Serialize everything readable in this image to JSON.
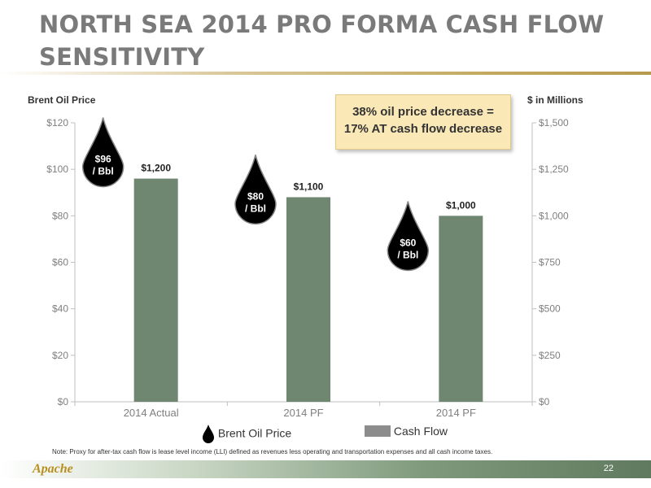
{
  "slide": {
    "title": "NORTH SEA 2014 PRO FORMA CASH FLOW SENSITIVITY",
    "page_number": "22",
    "logo_text": "Apache",
    "note": "Note: Proxy for after-tax cash flow is lease level income (LLI) defined as revenues less operating and transportation expenses and all cash income taxes."
  },
  "callout": {
    "line1": "38% oil price decrease  =",
    "line2": "17% AT cash flow decrease"
  },
  "colors": {
    "bar": "#6f8770",
    "drop": "#000000",
    "title": "#7a7a7a",
    "callout_bg": "#fbe8b7"
  },
  "chart_data": {
    "type": "bar",
    "categories": [
      "2014 Actual",
      "2014 PF",
      "2014 PF"
    ],
    "series": [
      {
        "name": "Cash Flow",
        "axis": "right",
        "values": [
          1200,
          1100,
          1000
        ],
        "data_labels": [
          "$1,200",
          "$1,100",
          "$1,000"
        ]
      },
      {
        "name": "Brent Oil Price",
        "axis": "left",
        "marker": "oil-drop",
        "values": [
          96,
          80,
          60
        ],
        "data_labels": [
          [
            "$96",
            "/ Bbl"
          ],
          [
            "$80",
            "/ Bbl"
          ],
          [
            "$60",
            "/ Bbl"
          ]
        ]
      }
    ],
    "left_axis": {
      "label": "Brent Oil Price",
      "range": [
        0,
        120
      ],
      "ticks": [
        0,
        20,
        40,
        60,
        80,
        100,
        120
      ],
      "tick_labels": [
        "$0",
        "$20",
        "$40",
        "$60",
        "$80",
        "$100",
        "$120"
      ]
    },
    "right_axis": {
      "label": "$ in Millions",
      "range": [
        0,
        1500
      ],
      "ticks": [
        0,
        250,
        500,
        750,
        1000,
        1250,
        1500
      ],
      "tick_labels": [
        "$0",
        "$250",
        "$500",
        "$750",
        "$1,000",
        "$1,250",
        "$1,500"
      ]
    },
    "grid": false,
    "legend": {
      "position": "bottom",
      "entries": [
        "Brent Oil Price",
        "Cash Flow"
      ]
    }
  }
}
